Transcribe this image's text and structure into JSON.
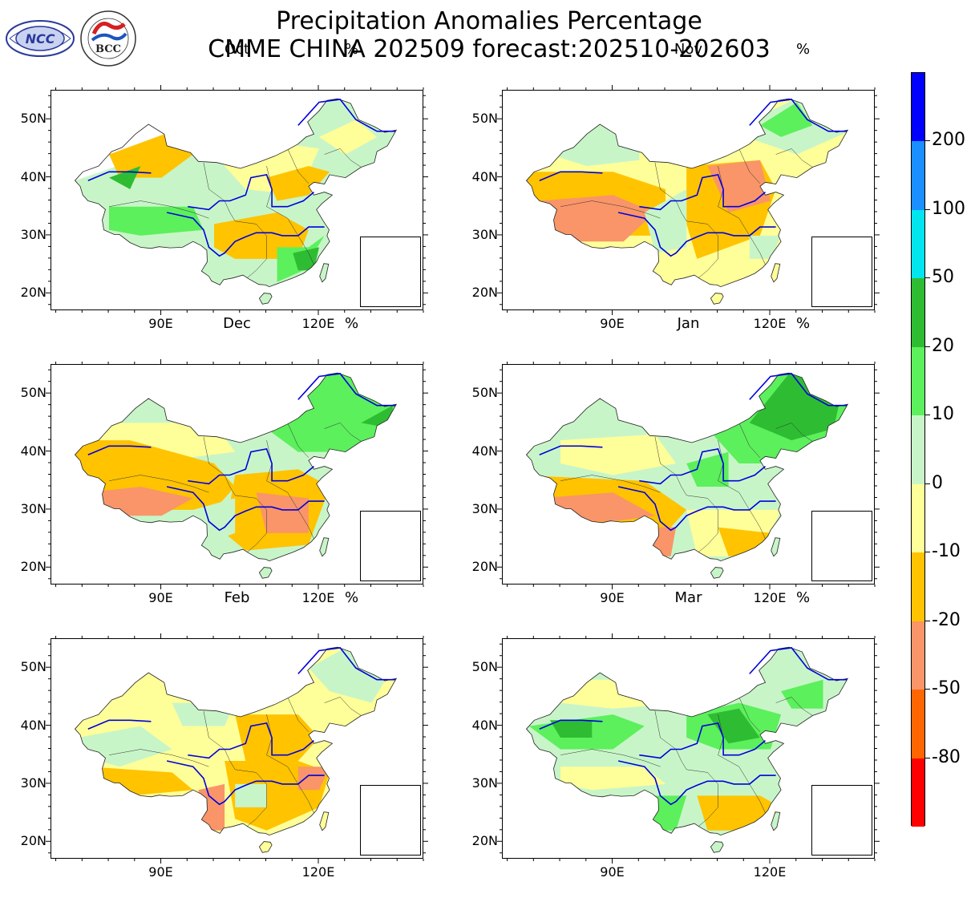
{
  "title_line1": "Precipitation Anomalies Percentage",
  "title_line2": "CMME CHINA 202509 forecast:202510-202603",
  "logos": [
    {
      "name": "ncc-logo",
      "text": "NCC"
    },
    {
      "name": "bcc-logo",
      "text": "BCC"
    }
  ],
  "unit": "%",
  "lat_labels": [
    "50N",
    "40N",
    "30N",
    "20N"
  ],
  "lon_labels": [
    "90E",
    "120E"
  ],
  "panels": [
    {
      "month": "Oct",
      "pattern": "mixed-wet-south"
    },
    {
      "month": "Nov",
      "pattern": "dry-center-west"
    },
    {
      "month": "Dec",
      "pattern": "wet-northeast-dry-south"
    },
    {
      "month": "Jan",
      "pattern": "wet-north-dry-southwest"
    },
    {
      "month": "Feb",
      "pattern": "dry-southeast"
    },
    {
      "month": "Mar",
      "pattern": "wet-north-dry-south"
    }
  ],
  "colorbar": {
    "labels": [
      "200",
      "100",
      "50",
      "20",
      "10",
      "0",
      "-10",
      "-20",
      "-50",
      "-80"
    ],
    "colors": [
      "#0000ff",
      "#1a8fff",
      "#00e5ee",
      "#2ebd32",
      "#5cf05c",
      "#c8f5c8",
      "#ffff99",
      "#ffc300",
      "#f99568",
      "#ff6600",
      "#ff0000"
    ],
    "category_labels": [
      ">200",
      "100 to 200",
      "50 to 100",
      "20 to 50",
      "10 to 20",
      "0 to 10",
      "-10 to 0",
      "-20 to -10",
      "-50 to -20",
      "-80 to -50",
      "<-80"
    ]
  }
}
